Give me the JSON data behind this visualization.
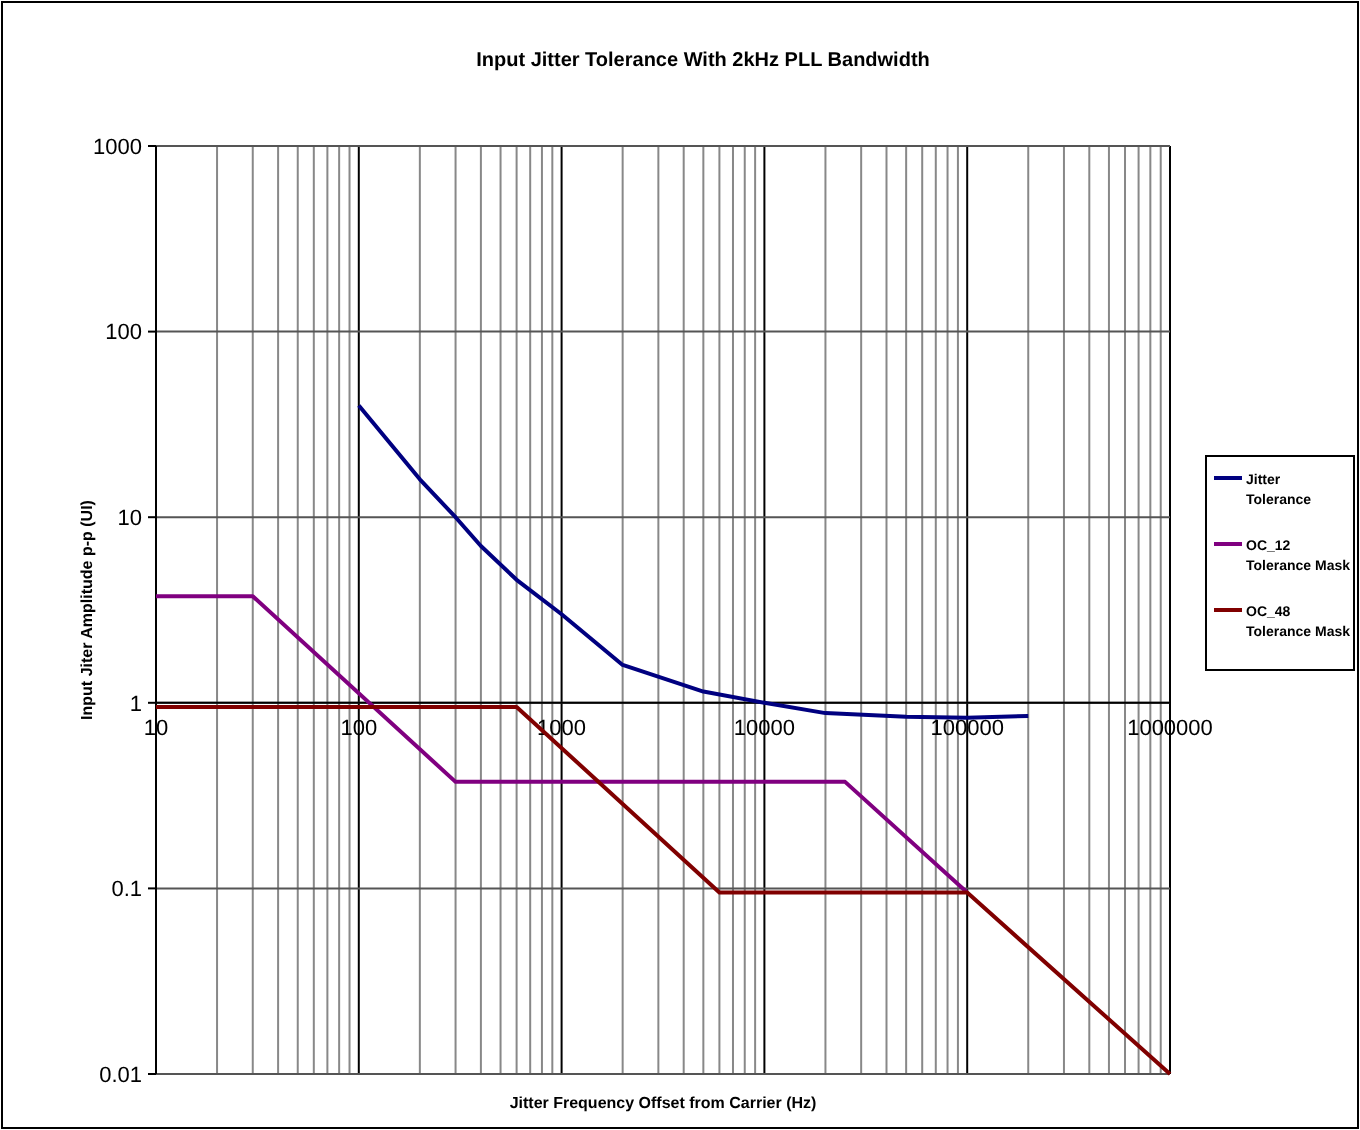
{
  "chart_data": {
    "type": "line",
    "title": "Input Jitter Tolerance With 2kHz PLL Bandwidth",
    "xlabel": "Jitter Frequency Offset from Carrier (Hz)",
    "ylabel": "Input Jiter Amplitude p-p (UI)",
    "log": "xy",
    "grid": true,
    "legend": "right",
    "marker": "none",
    "line_style": "solid",
    "xlim": [
      10,
      1000000
    ],
    "ylim": [
      0.01,
      1000
    ],
    "xticks": [
      10,
      {
        "value": 20,
        "label": null
      },
      {
        "value": 30,
        "label": null
      },
      {
        "value": 40,
        "label": null
      },
      {
        "value": 50,
        "label": null
      },
      {
        "value": 60,
        "label": null
      },
      {
        "value": 70,
        "label": null
      },
      {
        "value": 80,
        "label": null
      },
      {
        "value": 90,
        "label": null
      },
      100,
      {
        "value": 200,
        "label": null
      },
      {
        "value": 300,
        "label": null
      },
      {
        "value": 400,
        "label": null
      },
      {
        "value": 500,
        "label": null
      },
      {
        "value": 600,
        "label": null
      },
      {
        "value": 700,
        "label": null
      },
      {
        "value": 800,
        "label": null
      },
      {
        "value": 900,
        "label": null
      },
      1000,
      {
        "value": 2000,
        "label": null
      },
      {
        "value": 3000,
        "label": null
      },
      {
        "value": 4000,
        "label": null
      },
      {
        "value": 5000,
        "label": null
      },
      {
        "value": 6000,
        "label": null
      },
      {
        "value": 7000,
        "label": null
      },
      {
        "value": 8000,
        "label": null
      },
      {
        "value": 9000,
        "label": null
      },
      10000,
      {
        "value": 20000,
        "label": null
      },
      {
        "value": 30000,
        "label": null
      },
      {
        "value": 40000,
        "label": null
      },
      {
        "value": 50000,
        "label": null
      },
      {
        "value": 60000,
        "label": null
      },
      {
        "value": 70000,
        "label": null
      },
      {
        "value": 80000,
        "label": null
      },
      {
        "value": 90000,
        "label": null
      },
      100000,
      {
        "value": 200000,
        "label": null
      },
      {
        "value": 300000,
        "label": null
      },
      {
        "value": 400000,
        "label": null
      },
      {
        "value": 500000,
        "label": null
      },
      {
        "value": 600000,
        "label": null
      },
      {
        "value": 700000,
        "label": null
      },
      {
        "value": 800000,
        "label": null
      },
      {
        "value": 900000,
        "label": null
      },
      1000000
    ],
    "yticks": [
      0.01,
      0.1,
      1,
      10,
      100,
      1000
    ],
    "series": [
      {
        "name": "Jitter Tolerance",
        "color": "#000080",
        "x": [
          100,
          200,
          300,
          400,
          600,
          1000,
          2000,
          5000,
          10000,
          20000,
          50000,
          100000,
          200000
        ],
        "values": [
          40,
          16,
          10,
          7,
          4.6,
          3,
          1.6,
          1.15,
          1,
          0.88,
          0.84,
          0.83,
          0.85
        ]
      },
      {
        "name": "OC_12 Tolerance Mask",
        "color": "#800080",
        "x": [
          10,
          30,
          300,
          25000,
          100000
        ],
        "values": [
          3.75,
          3.75,
          0.375,
          0.375,
          0.095
        ]
      },
      {
        "name": "OC_48 Tolerance Mask",
        "color": "#800000",
        "x": [
          10,
          600,
          6000,
          100000,
          1000000
        ],
        "values": [
          0.95,
          0.95,
          0.095,
          0.095,
          0.01
        ]
      }
    ]
  }
}
